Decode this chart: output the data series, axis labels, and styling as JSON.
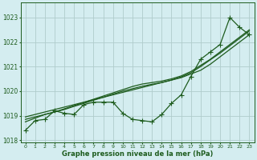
{
  "xlabel": "Graphe pression niveau de la mer (hPa)",
  "bg_color": "#d4edf0",
  "grid_color": "#b0cccc",
  "line_color": "#1e5c1e",
  "ylim": [
    1017.9,
    1023.6
  ],
  "xlim": [
    -0.5,
    23.5
  ],
  "yticks": [
    1018,
    1019,
    1020,
    1021,
    1022,
    1023
  ],
  "xticks": [
    0,
    1,
    2,
    3,
    4,
    5,
    6,
    7,
    8,
    9,
    10,
    11,
    12,
    13,
    14,
    15,
    16,
    17,
    18,
    19,
    20,
    21,
    22,
    23
  ],
  "series_straight1": [
    1018.95,
    1019.05,
    1019.15,
    1019.25,
    1019.35,
    1019.45,
    1019.55,
    1019.65,
    1019.75,
    1019.85,
    1019.95,
    1020.05,
    1020.15,
    1020.25,
    1020.35,
    1020.45,
    1020.55,
    1020.7,
    1020.85,
    1021.1,
    1021.4,
    1021.7,
    1022.0,
    1022.3
  ],
  "series_straight2": [
    1018.85,
    1018.95,
    1019.05,
    1019.15,
    1019.28,
    1019.41,
    1019.54,
    1019.67,
    1019.8,
    1019.93,
    1020.06,
    1020.19,
    1020.29,
    1020.35,
    1020.41,
    1020.5,
    1020.62,
    1020.8,
    1021.05,
    1021.3,
    1021.6,
    1021.9,
    1022.2,
    1022.5
  ],
  "series_straight3": [
    1018.75,
    1018.9,
    1019.05,
    1019.15,
    1019.25,
    1019.38,
    1019.5,
    1019.63,
    1019.75,
    1019.88,
    1020.0,
    1020.1,
    1020.2,
    1020.28,
    1020.35,
    1020.45,
    1020.58,
    1020.75,
    1021.0,
    1021.28,
    1021.55,
    1021.85,
    1022.15,
    1022.45
  ],
  "series_curved": [
    1018.4,
    1018.8,
    1018.85,
    1019.2,
    1019.1,
    1019.05,
    1019.45,
    1019.55,
    1019.55,
    1019.55,
    1019.1,
    1018.85,
    1018.8,
    1018.75,
    1019.05,
    1019.5,
    1019.85,
    1020.6,
    1021.3,
    1021.6,
    1021.9,
    1023.0,
    1022.6,
    1022.3
  ]
}
